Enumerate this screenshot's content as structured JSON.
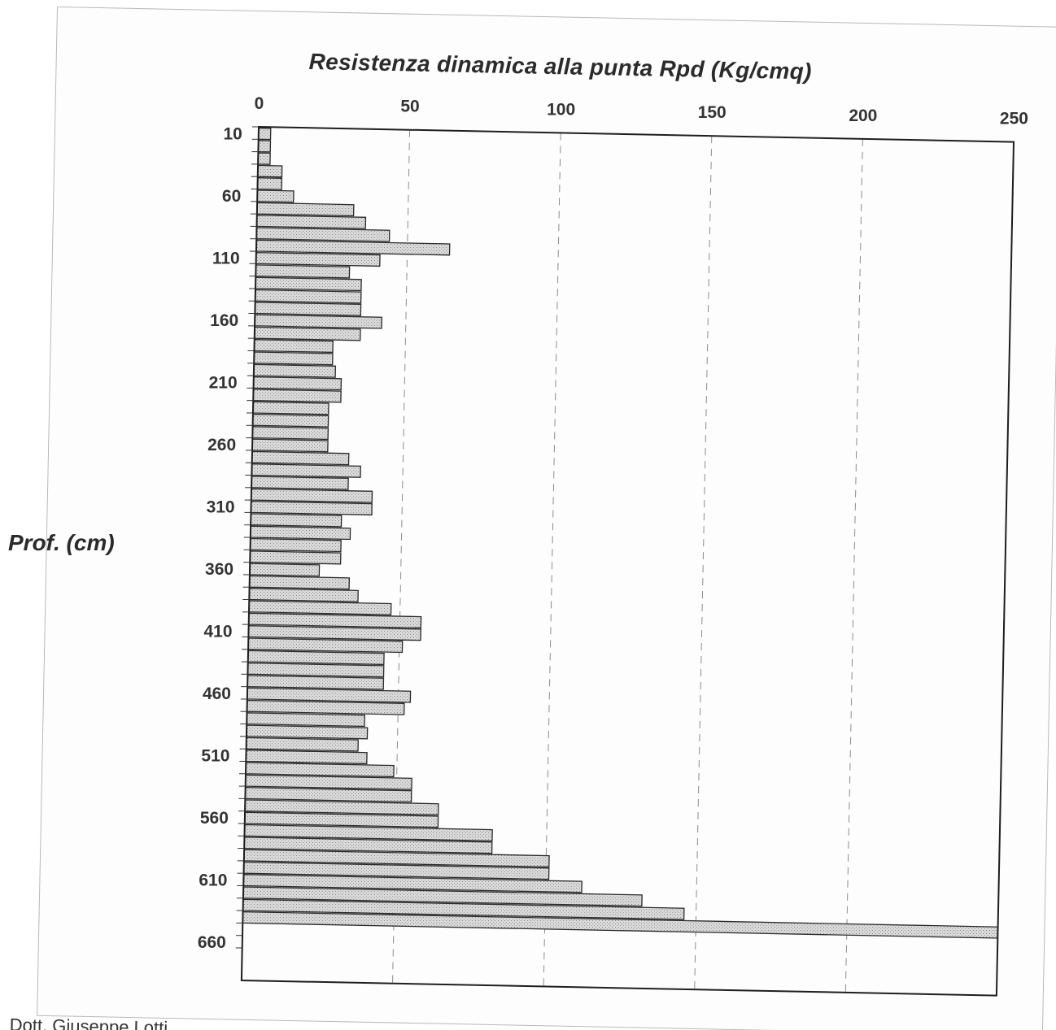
{
  "footer_text": "Dott. Giuseppe Lotti",
  "chart_data": {
    "type": "bar",
    "orientation": "horizontal",
    "title": "Resistenza dinamica alla punta Rpd (Kg/cmq)",
    "ylabel": "Prof. (cm)",
    "xlim": [
      0,
      250
    ],
    "x_ticks": [
      "0",
      "50",
      "100",
      "150",
      "200",
      "250"
    ],
    "y_ticks": [
      "10",
      "60",
      "110",
      "160",
      "210",
      "260",
      "310",
      "360",
      "410",
      "460",
      "510",
      "560",
      "610",
      "660"
    ],
    "depth_start_cm": 10,
    "depth_step_cm": 10,
    "grid": "vertical dashed",
    "bar_color": "#d9d9d9",
    "values": [
      4,
      4,
      4,
      8,
      8,
      12,
      32,
      36,
      44,
      64,
      41,
      31,
      35,
      35,
      35,
      42,
      35,
      26,
      26,
      27,
      29,
      29,
      25,
      25,
      25,
      25,
      32,
      36,
      32,
      40,
      40,
      30,
      33,
      30,
      30,
      23,
      33,
      36,
      47,
      57,
      57,
      51,
      45,
      45,
      45,
      54,
      52,
      39,
      40,
      37,
      40,
      49,
      55,
      55,
      64,
      64,
      82,
      82,
      101,
      101,
      112,
      132,
      146,
      250
    ]
  }
}
